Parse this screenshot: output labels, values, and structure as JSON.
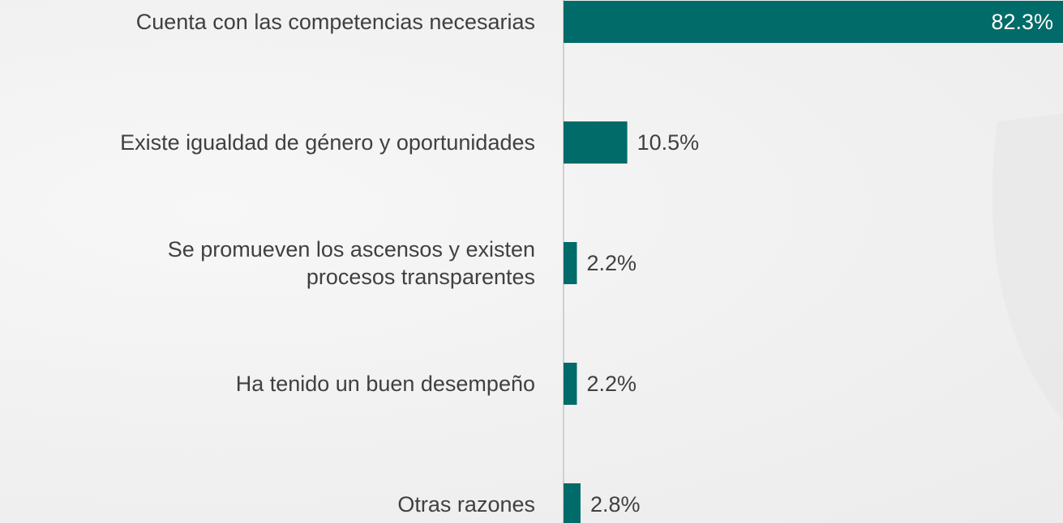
{
  "chart_data": {
    "type": "hbar",
    "categories": [
      "Cuenta con las competencias necesarias",
      "Existe igualdad de género y oportunidades",
      "Se promueven los ascensos y existen\nprocesos transparentes",
      "Ha tenido un buen desempeño",
      "Otras razones"
    ],
    "values": [
      82.3,
      10.5,
      2.2,
      2.2,
      2.8
    ],
    "value_labels": [
      "82.3%",
      "10.5%",
      "2.2%",
      "2.2%",
      "2.8%"
    ],
    "color": "#006b68",
    "xlim": [
      0,
      82.3
    ]
  }
}
